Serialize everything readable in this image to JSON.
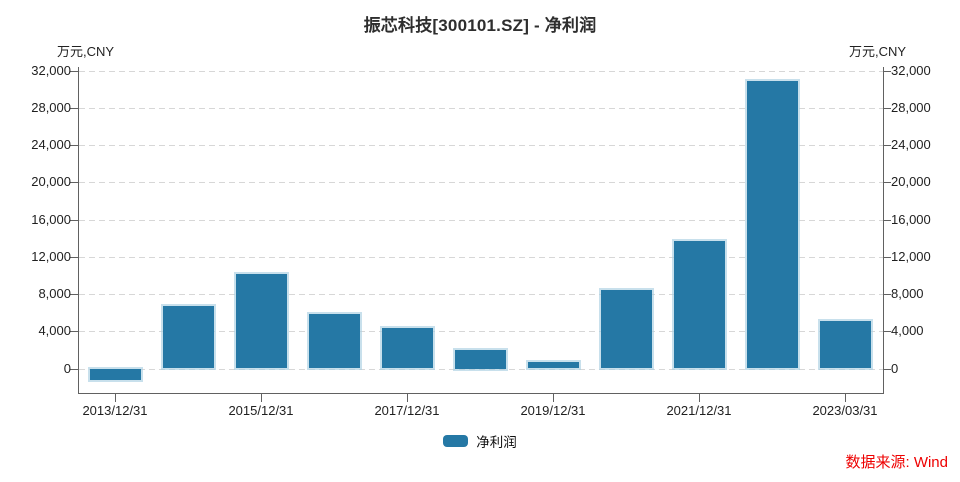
{
  "title": "振芯科技[300101.SZ] - 净利润",
  "unit_label_left": "万元,CNY",
  "unit_label_right": "万元,CNY",
  "legend": {
    "label": "净利润"
  },
  "source": "数据来源: Wind",
  "colors": {
    "bar": "#2578a5",
    "bar_halo": "#aacfe2",
    "axis": "#616161",
    "grid": "#d7d7d7",
    "text": "#1f1f1f",
    "title_text": "#2e2e2e",
    "source_red": "#ee0000"
  },
  "chart_data": {
    "type": "bar",
    "title": "振芯科技[300101.SZ] - 净利润",
    "ylabel": "万元,CNY",
    "series_name": "净利润",
    "categories": [
      "2013/12/31",
      "2014/12/31",
      "2015/12/31",
      "2016/12/31",
      "2017/12/31",
      "2018/12/31",
      "2019/12/31",
      "2020/12/31",
      "2021/12/31",
      "2022/12/31",
      "2023/03/31"
    ],
    "values": [
      -1200,
      6700,
      10100,
      5850,
      4300,
      2000,
      650,
      8400,
      13700,
      30850,
      5100
    ],
    "visible_x_tick_labels": [
      "2013/12/31",
      "2015/12/31",
      "2017/12/31",
      "2019/12/31",
      "2021/12/31",
      "2023/03/31"
    ],
    "visible_x_tick_indices": [
      0,
      2,
      4,
      6,
      8,
      10
    ],
    "y_ticks": [
      0,
      4000,
      8000,
      12000,
      16000,
      20000,
      24000,
      28000,
      32000
    ],
    "ylim": [
      -2630,
      32000
    ],
    "grid": true,
    "legend_position": "bottom"
  }
}
